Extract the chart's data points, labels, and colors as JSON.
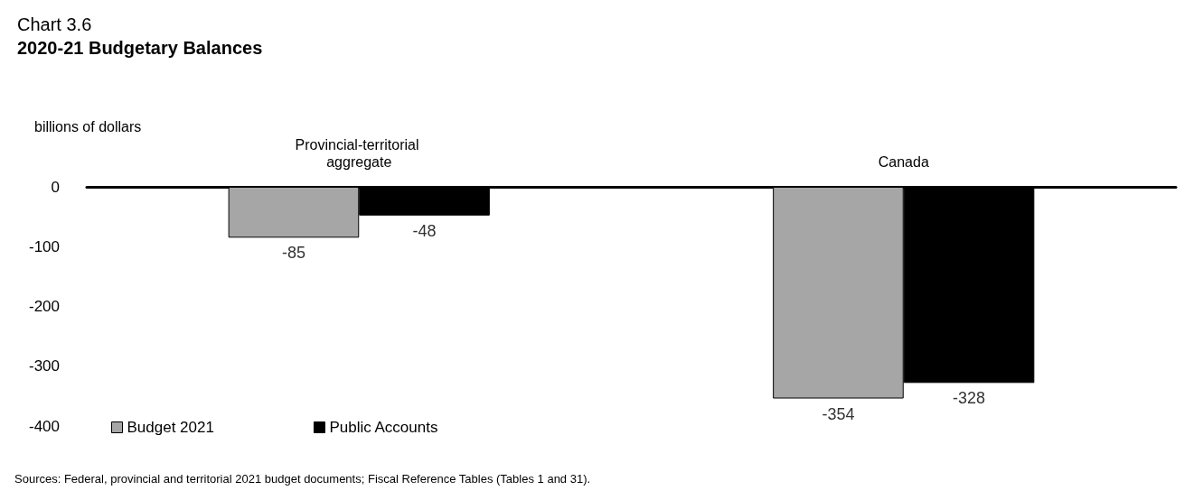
{
  "chart_data": {
    "type": "bar",
    "title": "Chart 3.6",
    "subtitle": "2020-21 Budgetary Balances",
    "ylabel": "billions of dollars",
    "categories": [
      "Provincial-territorial aggregate",
      "Canada"
    ],
    "series": [
      {
        "name": "Budget 2021",
        "color": "#a6a6a6",
        "values": [
          -85,
          -354
        ]
      },
      {
        "name": "Public Accounts",
        "color": "#000000",
        "values": [
          -48,
          -328
        ]
      }
    ],
    "ylim": [
      -400,
      0
    ],
    "yticks": [
      0,
      -100,
      -200,
      -300,
      -400
    ],
    "grid": false,
    "legend": "bottom left",
    "data_labels": true,
    "annotations": [
      "Sources: Federal, provincial and territorial 2021 budget documents; Fiscal Reference Tables (Tables 1 and 31)."
    ]
  }
}
